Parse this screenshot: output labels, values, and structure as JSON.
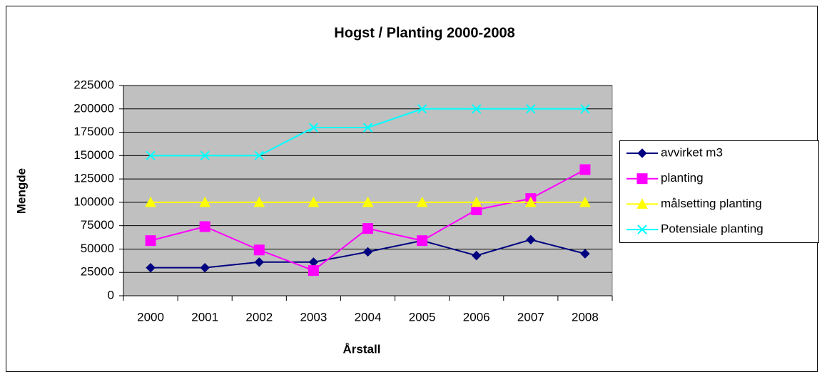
{
  "chart_data": {
    "type": "line",
    "title": "Hogst / Planting 2000-2008",
    "xlabel": "Årstall",
    "ylabel": "Mengde",
    "categories": [
      "2000",
      "2001",
      "2002",
      "2003",
      "2004",
      "2005",
      "2006",
      "2007",
      "2008"
    ],
    "series": [
      {
        "name": "avvirket m3",
        "color": "#000080",
        "marker": "diamond",
        "values": [
          30000,
          30000,
          36000,
          36000,
          47000,
          59000,
          43000,
          60000,
          45000
        ]
      },
      {
        "name": "planting",
        "color": "#ff00ff",
        "marker": "square",
        "values": [
          59000,
          74000,
          49000,
          27000,
          72000,
          59000,
          92000,
          104000,
          135000
        ]
      },
      {
        "name": "målsetting planting",
        "color": "#ffff00",
        "marker": "triangle",
        "values": [
          100000,
          100000,
          100000,
          100000,
          100000,
          100000,
          100000,
          100000,
          100000
        ]
      },
      {
        "name": "Potensiale planting",
        "color": "#00ffff",
        "marker": "x",
        "values": [
          150000,
          150000,
          150000,
          180000,
          180000,
          200000,
          200000,
          200000,
          200000
        ]
      }
    ],
    "ylim": [
      0,
      225000
    ],
    "yticks": [
      0,
      25000,
      50000,
      75000,
      100000,
      125000,
      150000,
      175000,
      200000,
      225000
    ],
    "grid": true,
    "legend": "right"
  }
}
